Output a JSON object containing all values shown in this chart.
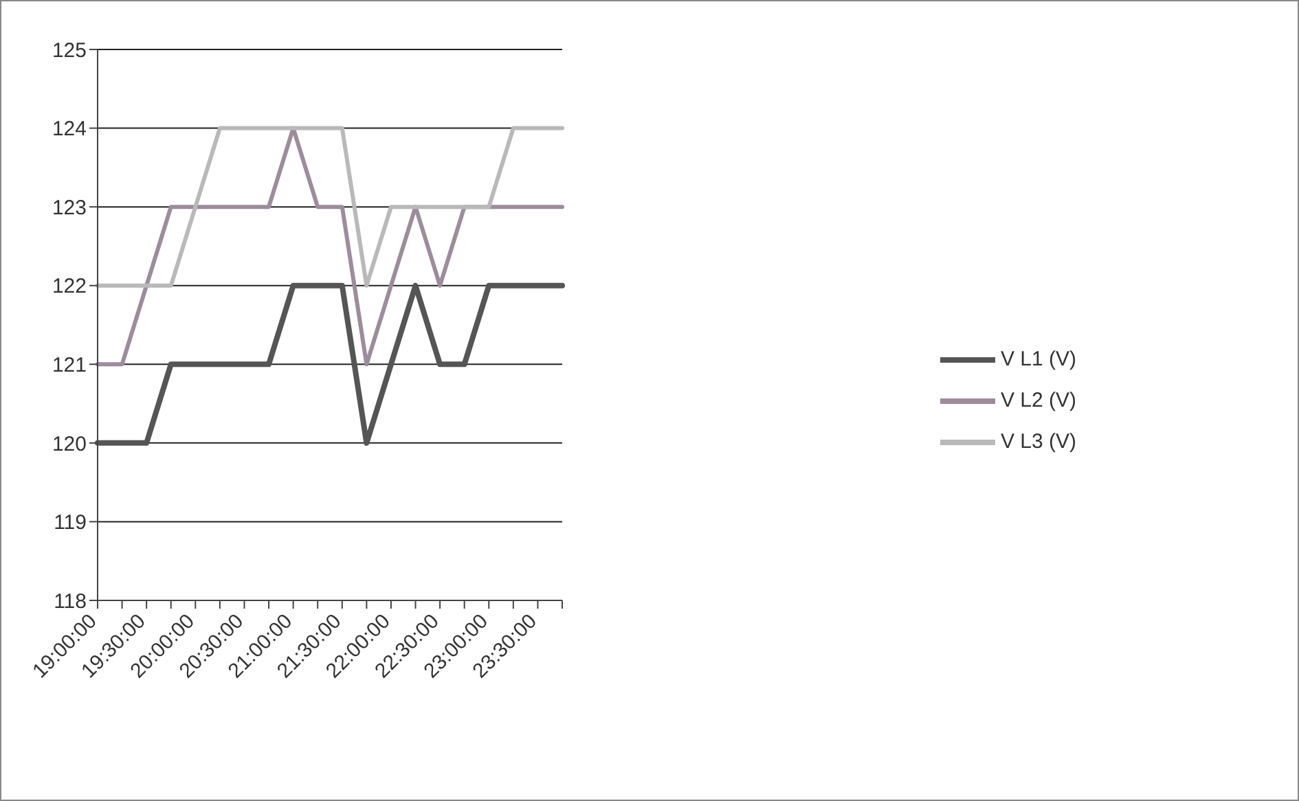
{
  "chart_data": {
    "type": "line",
    "categories": [
      "19:00:00",
      null,
      "19:30:00",
      null,
      "20:00:00",
      null,
      "20:30:00",
      null,
      "21:00:00",
      null,
      "21:30:00",
      null,
      "22:00:00",
      null,
      "22:30:00",
      null,
      "23:00:00",
      null,
      "23:30:00",
      null
    ],
    "series": [
      {
        "name": "V L1 (V)",
        "color": "#555555",
        "values": [
          120,
          120,
          120,
          121,
          121,
          121,
          121,
          121,
          122,
          122,
          122,
          120,
          121,
          122,
          121,
          121,
          122,
          122,
          122,
          122
        ]
      },
      {
        "name": "V L2 (V)",
        "color": "#9c8c9c",
        "values": [
          121,
          121,
          122,
          123,
          123,
          123,
          123,
          123,
          124,
          123,
          123,
          121,
          122,
          123,
          122,
          123,
          123,
          123,
          123,
          123
        ]
      },
      {
        "name": "V L3 (V)",
        "color": "#b9b9b9",
        "values": [
          122,
          122,
          122,
          122,
          123,
          124,
          124,
          124,
          124,
          124,
          124,
          122,
          123,
          123,
          123,
          123,
          123,
          124,
          124,
          124
        ]
      }
    ],
    "ylim": [
      118,
      125
    ],
    "yticks": [
      118,
      119,
      120,
      121,
      122,
      123,
      124,
      125
    ],
    "grid": "y",
    "legend": "right",
    "marker": "none",
    "line_style": "solid"
  }
}
